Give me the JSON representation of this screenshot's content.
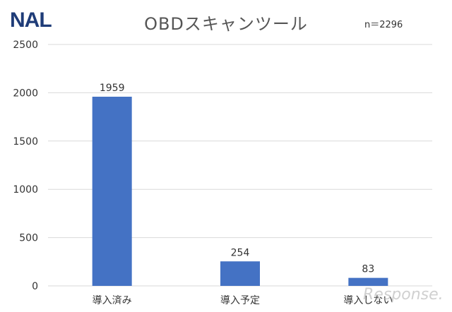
{
  "logo": {
    "text": "NAL",
    "color": "#1f3c78"
  },
  "title": "OBDスキャンツール",
  "sample_size": "n＝2296",
  "watermark": "Response.",
  "colors": {
    "bar": "#4472c4",
    "grid": "#d9d9d9",
    "text": "#333333"
  },
  "chart_data": {
    "type": "bar",
    "title": "OBDスキャンツール",
    "categories": [
      "導入済み",
      "導入予定",
      "導入しない"
    ],
    "values": [
      1959,
      254,
      83
    ],
    "data_labels": [
      "1959",
      "254",
      "83"
    ],
    "ylim": [
      0,
      2500
    ],
    "yticks": [
      0,
      500,
      1000,
      1500,
      2000,
      2500
    ],
    "grid": true,
    "xlabel": "",
    "ylabel": ""
  }
}
